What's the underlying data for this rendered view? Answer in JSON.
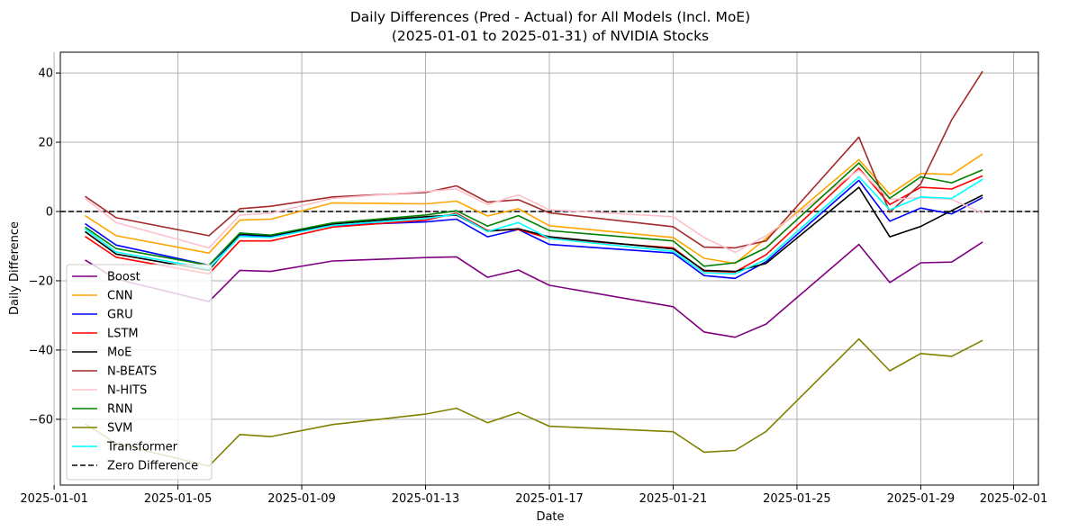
{
  "chart_data": {
    "type": "line",
    "title": "Daily Differences (Pred - Actual) for All Models (Incl. MoE)",
    "subtitle": "(2025-01-01 to 2025-01-31) of NVIDIA Stocks",
    "xlabel": "Date",
    "ylabel": "Daily Difference",
    "xlim": [
      "2025-01-01",
      "2025-02-01"
    ],
    "ylim": [
      -79,
      46
    ],
    "grid": true,
    "legend_position": "bottom-left",
    "x_ticks": [
      "2025-01-01",
      "2025-01-05",
      "2025-01-09",
      "2025-01-13",
      "2025-01-17",
      "2025-01-21",
      "2025-01-25",
      "2025-01-29",
      "2025-02-01"
    ],
    "y_ticks": [
      -60,
      -40,
      -20,
      0,
      20,
      40
    ],
    "x": [
      "2025-01-02",
      "2025-01-03",
      "2025-01-06",
      "2025-01-07",
      "2025-01-08",
      "2025-01-10",
      "2025-01-13",
      "2025-01-14",
      "2025-01-15",
      "2025-01-16",
      "2025-01-17",
      "2025-01-21",
      "2025-01-22",
      "2025-01-23",
      "2025-01-24",
      "2025-01-27",
      "2025-01-28",
      "2025-01-29",
      "2025-01-30",
      "2025-01-31"
    ],
    "series": [
      {
        "name": "Boost",
        "color": "#800080",
        "dashed": false,
        "values": [
          -14,
          -19.5,
          -26,
          -17,
          -17.3,
          -14.3,
          -13.3,
          -13.1,
          -19,
          -16.9,
          -21.3,
          -27.5,
          -34.8,
          -36.3,
          -32.5,
          -9.5,
          -20.5,
          -14.8,
          -14.6,
          -8.8
        ]
      },
      {
        "name": "CNN",
        "color": "#ffa500",
        "dashed": false,
        "values": [
          -1.2,
          -7,
          -12,
          -2.5,
          -2.2,
          2.5,
          2.2,
          3,
          -1.3,
          0.8,
          -4.1,
          -7.5,
          -13.5,
          -15,
          -7.8,
          15,
          5,
          11,
          10.7,
          16.6
        ]
      },
      {
        "name": "GRU",
        "color": "#0000ff",
        "dashed": false,
        "values": [
          -3.5,
          -9.7,
          -15.5,
          -7,
          -7.2,
          -4,
          -3,
          -2.2,
          -7.3,
          -5.2,
          -9.5,
          -12,
          -18.5,
          -19.3,
          -14.5,
          9,
          -2.8,
          1,
          -0.7,
          4
        ]
      },
      {
        "name": "LSTM",
        "color": "#ff0000",
        "dashed": false,
        "values": [
          -7.2,
          -13.2,
          -18,
          -8.5,
          -8.5,
          -4.5,
          -2.5,
          -0.5,
          -5.5,
          -5.2,
          -7.8,
          -10.5,
          -17.2,
          -17.5,
          -12.5,
          12.5,
          2,
          7,
          6.5,
          10.3
        ]
      },
      {
        "name": "MoE",
        "color": "#000000",
        "dashed": false,
        "values": [
          -5.8,
          -12.3,
          -17,
          -6.5,
          -7,
          -3.6,
          -1.5,
          -1,
          -5.7,
          -5,
          -7.3,
          -10.8,
          -17,
          -17.3,
          -15,
          7,
          -7.3,
          -4.3,
          0.3,
          4.7
        ]
      },
      {
        "name": "N-BEATS",
        "color": "#a52a2a",
        "dashed": false,
        "values": [
          4.4,
          -1.8,
          -7,
          0.8,
          1.5,
          4.2,
          5.5,
          7.4,
          2.7,
          3.4,
          -0.4,
          -4.4,
          -10.3,
          -10.5,
          -8.5,
          21.5,
          -0.2,
          8,
          26.5,
          40.5
        ]
      },
      {
        "name": "N-HITS",
        "color": "#ffc0cb",
        "dashed": false,
        "values": [
          3.8,
          -3.2,
          -10.5,
          -1,
          -0.5,
          3.8,
          5.8,
          6.5,
          2,
          4.8,
          0.5,
          -1.5,
          -7.5,
          -11.8,
          -7,
          12,
          3.5,
          4,
          3.5,
          -0.5
        ]
      },
      {
        "name": "RNN",
        "color": "#008000",
        "dashed": false,
        "values": [
          -4.5,
          -10.7,
          -15.5,
          -6.2,
          -6.8,
          -3.3,
          -1,
          0.2,
          -4.2,
          -1.2,
          -5.5,
          -8.5,
          -15.8,
          -14.8,
          -10.5,
          14,
          3.8,
          10,
          8.3,
          12
        ]
      },
      {
        "name": "SVM",
        "color": "#808000",
        "dashed": false,
        "values": [
          -61.3,
          -67,
          -73.5,
          -64.4,
          -65,
          -61.5,
          -58.5,
          -56.8,
          -61,
          -58,
          -62,
          -63.6,
          -69.5,
          -69,
          -63.5,
          -36.8,
          -46,
          -41,
          -41.8,
          -37.2
        ]
      },
      {
        "name": "Transformer",
        "color": "#00ffff",
        "dashed": false,
        "values": [
          -5,
          -11.7,
          -16.5,
          -7.2,
          -7.5,
          -4,
          -2,
          -0.8,
          -5.8,
          -3.2,
          -7.8,
          -11.5,
          -17.7,
          -18,
          -13.8,
          10,
          0.5,
          4.2,
          3.8,
          9.3
        ]
      },
      {
        "name": "Zero Difference",
        "color": "#000000",
        "dashed": true,
        "values": "horizontal line at y = 0"
      }
    ]
  }
}
